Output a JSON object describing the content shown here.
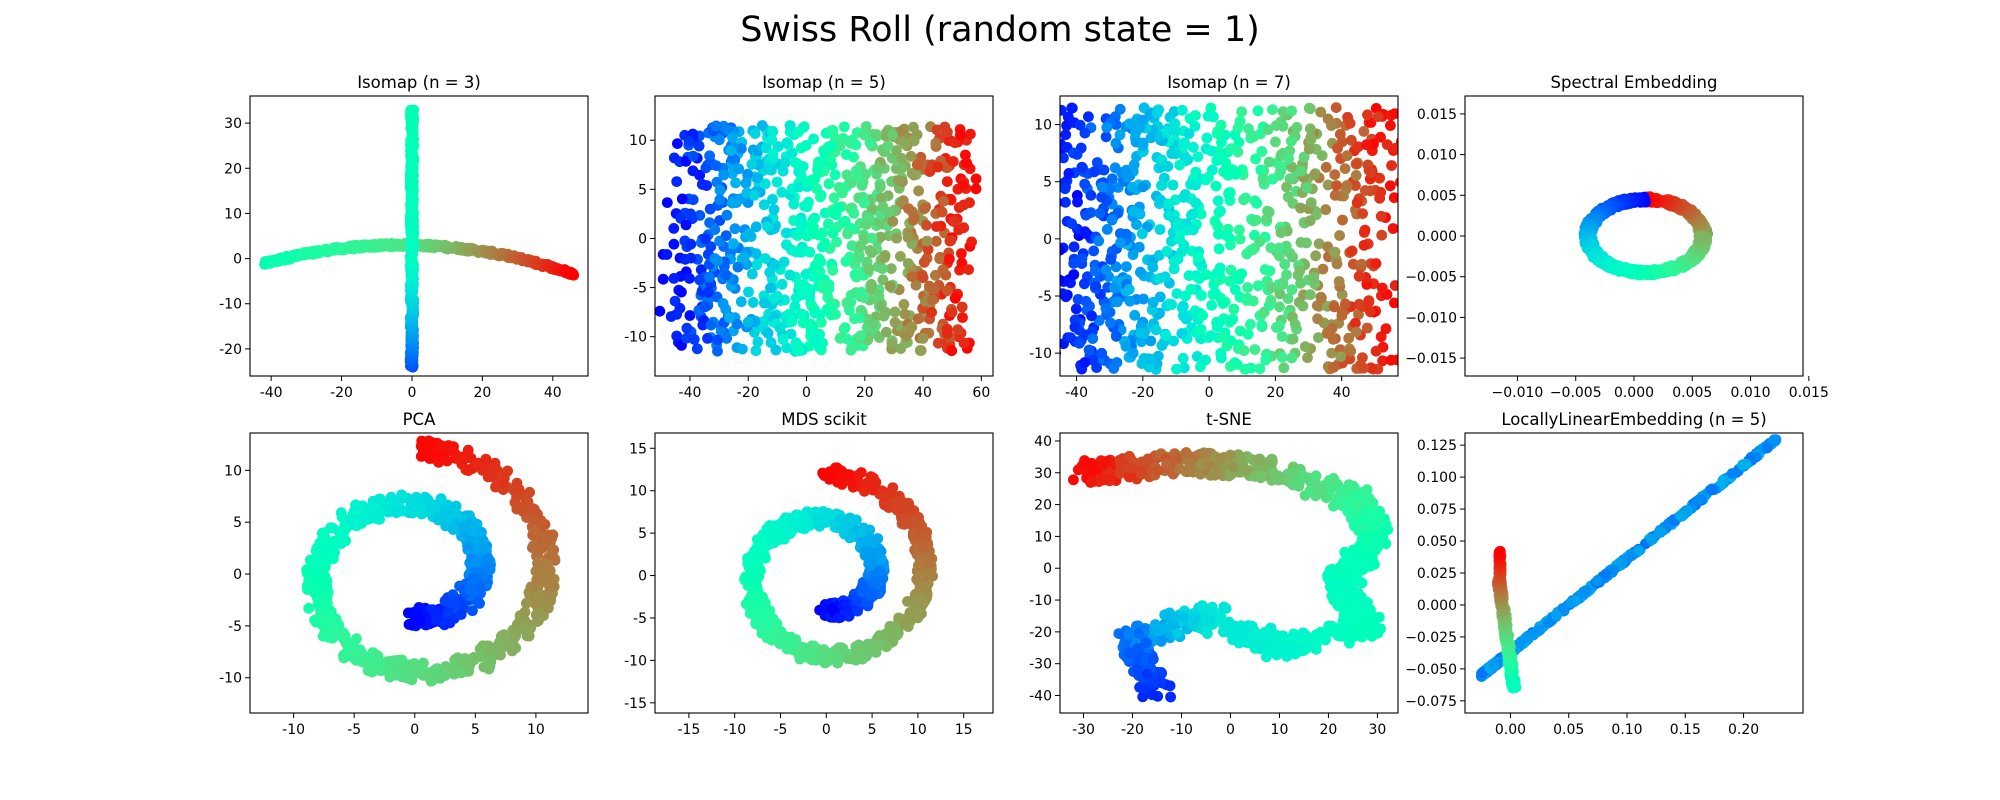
{
  "suptitle": "Swiss Roll (random state = 1)",
  "colormap": "rainbow",
  "colors": {
    "low": "#8000ff",
    "mid": "#80ffb4",
    "high": "#ff0000"
  },
  "chart_data": [
    {
      "type": "scatter",
      "title": "Isomap (n = 3)",
      "shape": "cross",
      "xlim": [
        -46,
        50
      ],
      "ylim": [
        -26,
        36
      ],
      "xticks": [
        "-40",
        "-20",
        "0",
        "20",
        "40"
      ],
      "yticks": [
        "-20",
        "-10",
        "0",
        "10",
        "20",
        "30"
      ],
      "xtick_values": [
        -40,
        -20,
        0,
        20,
        40
      ],
      "ytick_values": [
        -20,
        -10,
        0,
        10,
        20,
        30
      ],
      "x_range": [
        -42,
        46
      ],
      "y_range": [
        -24,
        33
      ],
      "points": [
        [
          -42,
          -3,
          0.5
        ],
        [
          -30,
          -1,
          0.5
        ],
        [
          -15,
          1.5,
          0.6
        ],
        [
          0,
          3,
          0.65
        ],
        [
          20,
          2,
          0.85
        ],
        [
          46,
          -2,
          1.0
        ],
        [
          0,
          33,
          0.5
        ],
        [
          0,
          0,
          0.45
        ],
        [
          0,
          -24,
          0.1
        ]
      ]
    },
    {
      "type": "scatter",
      "title": "Isomap (n = 5)",
      "shape": "grid",
      "xlim": [
        -52,
        64
      ],
      "ylim": [
        -14,
        14.5
      ],
      "xticks": [
        "-40",
        "-20",
        "0",
        "20",
        "40",
        "60"
      ],
      "yticks": [
        "-10",
        "-5",
        "0",
        "5",
        "10"
      ],
      "xtick_values": [
        -40,
        -20,
        0,
        20,
        40,
        60
      ],
      "ytick_values": [
        -10,
        -5,
        0,
        5,
        10
      ],
      "x_range": [
        -47,
        58
      ],
      "y_range": [
        -12.5,
        13
      ],
      "points": [
        [
          -47,
          1.5,
          0.0
        ],
        [
          -40,
          -12,
          0.05
        ],
        [
          -30,
          12,
          0.3
        ],
        [
          0,
          -8,
          0.45
        ],
        [
          10,
          12,
          0.55
        ],
        [
          35,
          11,
          0.75
        ],
        [
          58,
          2.5,
          1.0
        ],
        [
          55,
          -8,
          0.95
        ],
        [
          25,
          -11,
          0.7
        ]
      ]
    },
    {
      "type": "scatter",
      "title": "Isomap (n = 7)",
      "shape": "grid",
      "xlim": [
        -45,
        57
      ],
      "ylim": [
        -12,
        12.5
      ],
      "xticks": [
        "-40",
        "-20",
        "0",
        "20",
        "40"
      ],
      "yticks": [
        "-10",
        "-5",
        "0",
        "5",
        "10"
      ],
      "xtick_values": [
        -40,
        -20,
        0,
        20,
        40
      ],
      "ytick_values": [
        -10,
        -5,
        0,
        5,
        10
      ],
      "x_range": [
        -41,
        53
      ],
      "y_range": [
        -11,
        11.5
      ],
      "points": [
        [
          -41,
          9,
          0.0
        ],
        [
          -41,
          -11,
          0.05
        ],
        [
          -15,
          11,
          0.3
        ],
        [
          0,
          -10,
          0.5
        ],
        [
          20,
          -11,
          0.65
        ],
        [
          53,
          11.5,
          1.0
        ],
        [
          53,
          -9,
          0.95
        ]
      ]
    },
    {
      "type": "scatter",
      "title": "Spectral Embedding",
      "shape": "ring",
      "xlim": [
        -0.0145,
        0.0145
      ],
      "ylim": [
        -0.0172,
        0.0172
      ],
      "xticks": [
        "−0.010",
        "−0.005",
        "0.000",
        "0.005",
        "0.010",
        "0.015"
      ],
      "yticks": [
        "−0.015",
        "−0.010",
        "−0.005",
        "0.000",
        "0.005",
        "0.010",
        "0.015"
      ],
      "xtick_values": [
        -0.01,
        -0.005,
        0.0,
        0.005,
        0.01,
        0.015
      ],
      "ytick_values": [
        -0.015,
        -0.01,
        -0.005,
        0.0,
        0.005,
        0.01,
        0.015
      ],
      "x_range": [
        -0.004,
        0.006
      ],
      "y_range": [
        -0.0045,
        0.005
      ],
      "points": [
        [
          0.0006,
          0.0003,
          0.0
        ],
        [
          -0.004,
          0.0,
          0.8
        ],
        [
          0.0,
          -0.0045,
          1.0
        ],
        [
          0.006,
          0.0,
          0.3
        ],
        [
          0.002,
          0.005,
          0.45
        ]
      ]
    },
    {
      "type": "scatter",
      "title": "PCA",
      "shape": "spiral",
      "xlim": [
        -13.6,
        14.3
      ],
      "ylim": [
        -13.4,
        13.6
      ],
      "xticks": [
        "-10",
        "-5",
        "0",
        "5",
        "10"
      ],
      "yticks": [
        "-10",
        "-5",
        "0",
        "5",
        "10"
      ],
      "xtick_values": [
        -10,
        -5,
        0,
        5,
        10
      ],
      "ytick_values": [
        -10,
        -5,
        0,
        5,
        10
      ],
      "x_range": [
        -12.5,
        13
      ],
      "y_range": [
        -12.5,
        12.5
      ],
      "points": [
        [
          -5.5,
          0,
          0.0
        ],
        [
          6,
          -3,
          0.25
        ],
        [
          0,
          -12,
          0.45
        ],
        [
          -12,
          -2,
          0.55
        ],
        [
          0,
          12,
          0.75
        ],
        [
          12,
          2,
          0.9
        ],
        [
          10.5,
          -10.5,
          1.0
        ]
      ]
    },
    {
      "type": "scatter",
      "title": "MDS scikit",
      "shape": "spiral",
      "xlim": [
        -18.7,
        18.2
      ],
      "ylim": [
        -16.2,
        16.8
      ],
      "xticks": [
        "-15",
        "-10",
        "-5",
        "0",
        "5",
        "10",
        "15"
      ],
      "yticks": [
        "-15",
        "-10",
        "-5",
        "0",
        "5",
        "10",
        "15"
      ],
      "xtick_values": [
        -15,
        -10,
        -5,
        0,
        5,
        10,
        15
      ],
      "ytick_values": [
        -15,
        -10,
        -5,
        0,
        5,
        10,
        15
      ],
      "x_range": [
        -17,
        17
      ],
      "y_range": [
        -14.5,
        15.2
      ],
      "points": [
        [
          -5,
          3,
          0.0
        ],
        [
          7,
          -4,
          0.25
        ],
        [
          0,
          -14,
          0.45
        ],
        [
          -16,
          0,
          0.55
        ],
        [
          0,
          15,
          0.75
        ],
        [
          16,
          0,
          0.9
        ],
        [
          10,
          -14,
          1.0
        ]
      ]
    },
    {
      "type": "scatter",
      "title": "t-SNE",
      "shape": "band",
      "xlim": [
        -34.8,
        34.2
      ],
      "ylim": [
        -45.5,
        42.5
      ],
      "xticks": [
        "-30",
        "-20",
        "-10",
        "0",
        "10",
        "20",
        "30"
      ],
      "yticks": [
        "-40",
        "-30",
        "-20",
        "-10",
        "0",
        "10",
        "20",
        "30",
        "40"
      ],
      "xtick_values": [
        -30,
        -20,
        -10,
        0,
        10,
        20,
        30
      ],
      "ytick_values": [
        -40,
        -30,
        -20,
        -10,
        0,
        10,
        20,
        30,
        40
      ],
      "x_range": [
        -31,
        31
      ],
      "y_range": [
        -42,
        37
      ],
      "points": [
        [
          -31,
          30,
          1.0
        ],
        [
          0,
          25,
          0.8
        ],
        [
          30,
          18,
          0.5
        ],
        [
          15,
          -5,
          0.45
        ],
        [
          30,
          -18,
          0.5
        ],
        [
          0,
          -20,
          0.3
        ],
        [
          -20,
          -38,
          0.0
        ]
      ]
    },
    {
      "type": "scatter",
      "title": "LocallyLinearEmbedding (n = 5)",
      "shape": "lines",
      "xlim": [
        -0.039,
        0.251
      ],
      "ylim": [
        -0.0845,
        0.1345
      ],
      "xticks": [
        "0.00",
        "0.05",
        "0.10",
        "0.15",
        "0.20"
      ],
      "yticks": [
        "−0.075",
        "−0.050",
        "−0.025",
        "0.000",
        "0.025",
        "0.050",
        "0.075",
        "0.100",
        "0.125"
      ],
      "xtick_values": [
        0.0,
        0.05,
        0.1,
        0.15,
        0.2
      ],
      "ytick_values": [
        -0.075,
        -0.05,
        -0.025,
        0.0,
        0.025,
        0.05,
        0.075,
        0.1,
        0.125
      ],
      "x_range": [
        -0.025,
        0.23
      ],
      "y_range": [
        -0.065,
        0.114
      ],
      "points": [
        [
          -0.025,
          -0.055,
          0.2
        ],
        [
          0.1,
          0.032,
          0.22
        ],
        [
          0.23,
          0.114,
          0.18
        ],
        [
          -0.008,
          0.042,
          1.0
        ],
        [
          -0.02,
          0.02,
          0.5
        ],
        [
          -0.005,
          -0.063,
          0.45
        ]
      ]
    }
  ]
}
